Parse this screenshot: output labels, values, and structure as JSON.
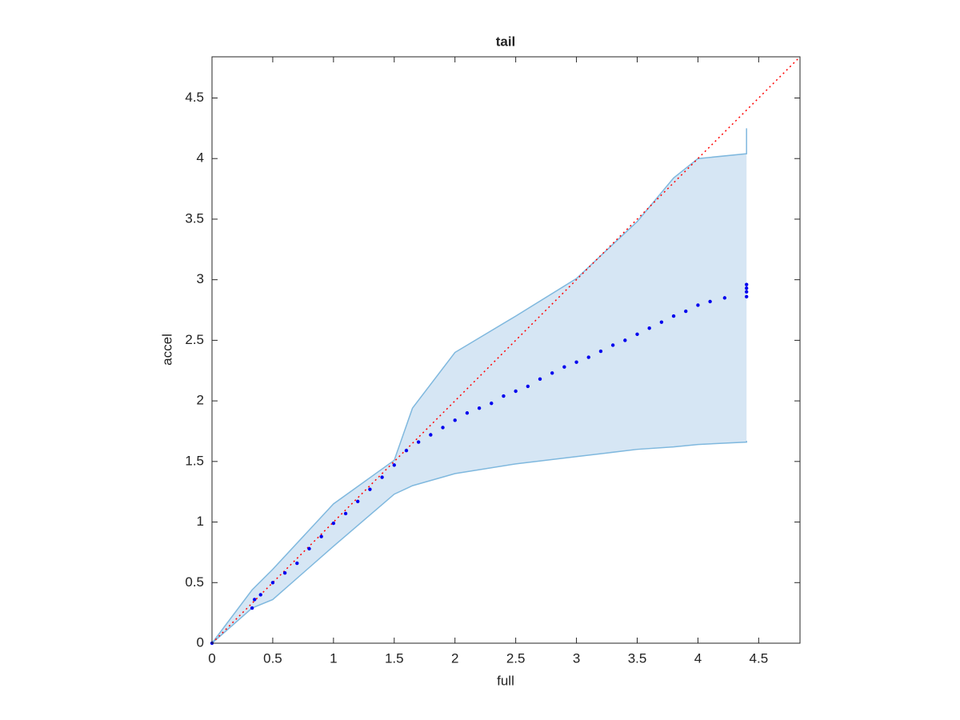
{
  "chart_data": {
    "type": "scatter",
    "title": "tail",
    "x_label": "full",
    "y_label": "accel",
    "x": [
      0,
      0.33,
      0.35,
      0.4,
      0.5,
      0.6,
      0.7,
      0.8,
      0.9,
      1.0,
      1.1,
      1.2,
      1.3,
      1.4,
      1.5,
      1.6,
      1.7,
      1.8,
      1.9,
      2.0,
      2.1,
      2.2,
      2.3,
      2.4,
      2.5,
      2.6,
      2.7,
      2.8,
      2.9,
      3.0,
      3.1,
      3.2,
      3.3,
      3.4,
      3.5,
      3.6,
      3.7,
      3.8,
      3.9,
      4.0,
      4.1,
      4.22,
      4.4,
      4.4,
      4.4,
      4.4
    ],
    "values": [
      0,
      0.29,
      0.36,
      0.4,
      0.5,
      0.58,
      0.66,
      0.78,
      0.88,
      0.99,
      1.07,
      1.17,
      1.27,
      1.37,
      1.47,
      1.59,
      1.66,
      1.72,
      1.78,
      1.84,
      1.9,
      1.94,
      1.98,
      2.04,
      2.08,
      2.12,
      2.18,
      2.23,
      2.28,
      2.32,
      2.36,
      2.41,
      2.46,
      2.5,
      2.55,
      2.6,
      2.65,
      2.7,
      2.74,
      2.79,
      2.82,
      2.85,
      2.86,
      2.9,
      2.93,
      2.96
    ],
    "color": "#0000ee",
    "band": {
      "x": [
        0,
        0.33,
        0.5,
        1.0,
        1.5,
        1.65,
        2.0,
        2.5,
        3.0,
        3.5,
        3.8,
        4.0,
        4.4,
        4.4
      ],
      "lower": [
        0,
        0.29,
        0.36,
        0.8,
        1.23,
        1.3,
        1.4,
        1.48,
        1.54,
        1.6,
        1.62,
        1.64,
        1.66,
        1.67
      ],
      "upper": [
        0,
        0.44,
        0.61,
        1.15,
        1.51,
        1.94,
        2.4,
        2.7,
        3.01,
        3.48,
        3.84,
        4.0,
        4.04,
        4.25
      ],
      "color": "#7fb8de",
      "fill": "#d6e6f4"
    },
    "reference_line": {
      "x": [
        0,
        4.84
      ],
      "y": [
        0,
        4.84
      ],
      "color": "#ff0000"
    },
    "xlim": [
      0,
      4.84
    ],
    "ylim": [
      0,
      4.84
    ],
    "xticks": [
      0,
      0.5,
      1,
      1.5,
      2,
      2.5,
      3,
      3.5,
      4,
      4.5
    ],
    "yticks": [
      0,
      0.5,
      1,
      1.5,
      2,
      2.5,
      3,
      3.5,
      4,
      4.5
    ]
  }
}
